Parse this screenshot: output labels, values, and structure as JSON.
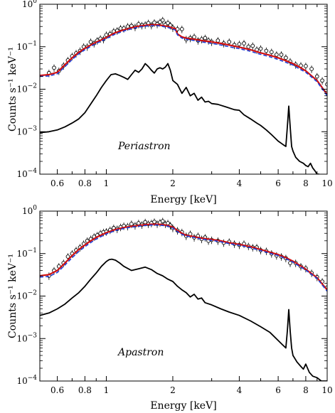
{
  "chart_data": [
    {
      "type": "line",
      "annotation": "Periastron",
      "xlabel": "Energy [keV]",
      "ylabel": "Counts s⁻¹ keV⁻¹",
      "xscale": "log",
      "yscale": "log",
      "xlim": [
        0.5,
        10
      ],
      "ylim": [
        0.0001,
        1
      ],
      "x_ticks": [
        {
          "value": 0.6,
          "label": "0.6"
        },
        {
          "value": 0.8,
          "label": "0.8"
        },
        {
          "value": 1,
          "label": "1"
        },
        {
          "value": 2,
          "label": "2"
        },
        {
          "value": 4,
          "label": "4"
        },
        {
          "value": 6,
          "label": "6"
        },
        {
          "value": 8,
          "label": "8"
        },
        {
          "value": 10,
          "label": "10"
        }
      ],
      "y_ticks": [
        {
          "value": 1,
          "base": "10",
          "exp": "0"
        },
        {
          "value": 0.1,
          "base": "10",
          "exp": "−1"
        },
        {
          "value": 0.01,
          "base": "10",
          "exp": "−2"
        },
        {
          "value": 0.001,
          "base": "10",
          "exp": "−3"
        },
        {
          "value": 0.0001,
          "base": "10",
          "exp": "−4"
        }
      ],
      "grid": false,
      "series": [
        {
          "kind": "data",
          "x": [
            0.55,
            0.58,
            0.61,
            0.64,
            0.67,
            0.7,
            0.73,
            0.76,
            0.79,
            0.82,
            0.85,
            0.88,
            0.91,
            0.94,
            0.97,
            1.0,
            1.04,
            1.08,
            1.12,
            1.16,
            1.2,
            1.25,
            1.3,
            1.35,
            1.4,
            1.45,
            1.5,
            1.55,
            1.6,
            1.65,
            1.7,
            1.75,
            1.8,
            1.85,
            1.9,
            1.95,
            2.0,
            2.1,
            2.2,
            2.3,
            2.4,
            2.5,
            2.6,
            2.7,
            2.8,
            2.9,
            3.0,
            3.2,
            3.4,
            3.6,
            3.8,
            4.0,
            4.2,
            4.4,
            4.6,
            4.8,
            5.0,
            5.3,
            5.6,
            5.9,
            6.2,
            6.5,
            6.8,
            7.2,
            7.6,
            8.0,
            8.5,
            9.0,
            9.5,
            10.0
          ],
          "y": [
            0.024,
            0.032,
            0.027,
            0.036,
            0.048,
            0.06,
            0.07,
            0.08,
            0.1,
            0.1,
            0.13,
            0.12,
            0.14,
            0.155,
            0.15,
            0.19,
            0.2,
            0.23,
            0.24,
            0.27,
            0.27,
            0.3,
            0.31,
            0.29,
            0.34,
            0.32,
            0.33,
            0.36,
            0.32,
            0.37,
            0.34,
            0.38,
            0.42,
            0.33,
            0.36,
            0.32,
            0.28,
            0.26,
            0.26,
            0.15,
            0.16,
            0.17,
            0.14,
            0.15,
            0.16,
            0.14,
            0.13,
            0.14,
            0.12,
            0.13,
            0.11,
            0.115,
            0.12,
            0.1,
            0.105,
            0.085,
            0.09,
            0.08,
            0.075,
            0.065,
            0.065,
            0.055,
            0.045,
            0.038,
            0.036,
            0.035,
            0.03,
            0.02,
            0.016,
            0.013
          ],
          "yerr_frac": 0.2
        },
        {
          "kind": "model",
          "color": "#d01010",
          "x": [
            0.5,
            0.55,
            0.6,
            0.65,
            0.7,
            0.75,
            0.8,
            0.85,
            0.9,
            0.95,
            1.0,
            1.05,
            1.1,
            1.2,
            1.3,
            1.4,
            1.5,
            1.6,
            1.7,
            1.8,
            1.9,
            2.0,
            2.05,
            2.1,
            2.2,
            2.3,
            2.5,
            2.7,
            3.0,
            3.3,
            3.6,
            4.0,
            4.5,
            5.0,
            5.5,
            6.0,
            6.5,
            7.0,
            7.5,
            8.0,
            9.0,
            10.0
          ],
          "y": [
            0.021,
            0.022,
            0.025,
            0.038,
            0.055,
            0.074,
            0.092,
            0.11,
            0.128,
            0.145,
            0.165,
            0.19,
            0.215,
            0.25,
            0.28,
            0.305,
            0.32,
            0.33,
            0.33,
            0.315,
            0.3,
            0.275,
            0.27,
            0.2,
            0.17,
            0.16,
            0.15,
            0.14,
            0.13,
            0.12,
            0.11,
            0.098,
            0.085,
            0.072,
            0.063,
            0.055,
            0.047,
            0.04,
            0.033,
            0.027,
            0.016,
            0.0075
          ]
        },
        {
          "kind": "model",
          "color": "#1f3fd6",
          "dashed": true,
          "x": [
            0.5,
            0.55,
            0.6,
            0.65,
            0.7,
            0.75,
            0.8,
            0.85,
            0.9,
            0.95,
            1.0,
            1.05,
            1.1,
            1.2,
            1.3,
            1.4,
            1.5,
            1.6,
            1.7,
            1.8,
            1.9,
            2.0,
            2.05,
            2.1,
            2.2,
            2.3,
            2.5,
            2.7,
            3.0,
            3.3,
            3.6,
            4.0,
            4.5,
            5.0,
            5.5,
            6.0,
            6.5,
            7.0,
            7.5,
            8.0,
            9.0,
            10.0
          ],
          "y": [
            0.02,
            0.0205,
            0.023,
            0.034,
            0.05,
            0.068,
            0.085,
            0.102,
            0.12,
            0.136,
            0.155,
            0.178,
            0.2,
            0.235,
            0.265,
            0.29,
            0.305,
            0.315,
            0.315,
            0.3,
            0.285,
            0.26,
            0.25,
            0.19,
            0.16,
            0.15,
            0.14,
            0.13,
            0.12,
            0.11,
            0.1,
            0.09,
            0.078,
            0.066,
            0.058,
            0.05,
            0.043,
            0.037,
            0.03,
            0.025,
            0.015,
            0.007
          ]
        },
        {
          "kind": "component",
          "color": "#000000",
          "x": [
            0.5,
            0.55,
            0.6,
            0.65,
            0.7,
            0.75,
            0.8,
            0.85,
            0.9,
            0.95,
            1.0,
            1.05,
            1.1,
            1.15,
            1.2,
            1.25,
            1.3,
            1.35,
            1.4,
            1.45,
            1.5,
            1.55,
            1.6,
            1.65,
            1.7,
            1.75,
            1.8,
            1.85,
            1.9,
            1.95,
            2.0,
            2.1,
            2.2,
            2.3,
            2.4,
            2.5,
            2.6,
            2.7,
            2.8,
            2.9,
            3.0,
            3.2,
            3.5,
            3.8,
            4.0,
            4.2,
            4.5,
            4.8,
            5.0,
            5.3,
            5.6,
            6.0,
            6.3,
            6.5,
            6.6,
            6.7,
            6.8,
            6.9,
            7.0,
            7.2,
            7.5,
            7.8,
            8.0,
            8.2,
            8.4,
            8.6,
            8.8,
            9.0,
            9.2
          ],
          "y": [
            0.00095,
            0.001,
            0.0011,
            0.0013,
            0.0016,
            0.002,
            0.0028,
            0.0045,
            0.007,
            0.011,
            0.016,
            0.022,
            0.023,
            0.021,
            0.019,
            0.017,
            0.022,
            0.028,
            0.025,
            0.03,
            0.04,
            0.034,
            0.028,
            0.024,
            0.03,
            0.032,
            0.03,
            0.033,
            0.04,
            0.028,
            0.016,
            0.013,
            0.008,
            0.011,
            0.007,
            0.008,
            0.0055,
            0.0065,
            0.005,
            0.0052,
            0.0046,
            0.0044,
            0.0038,
            0.0033,
            0.0032,
            0.0025,
            0.002,
            0.0016,
            0.0014,
            0.0011,
            0.00085,
            0.0006,
            0.0005,
            0.00045,
            0.0013,
            0.004,
            0.0013,
            0.00045,
            0.00035,
            0.00025,
            0.0002,
            0.00018,
            0.00016,
            0.00015,
            0.00018,
            0.00014,
            0.00012,
            0.0001,
            0.0001
          ]
        }
      ]
    },
    {
      "type": "line",
      "annotation": "Apastron",
      "xlabel": "Energy [keV]",
      "ylabel": "Counts s⁻¹ keV⁻¹",
      "xscale": "log",
      "yscale": "log",
      "xlim": [
        0.5,
        10
      ],
      "ylim": [
        0.0001,
        1
      ],
      "x_ticks": [
        {
          "value": 0.6,
          "label": "0.6"
        },
        {
          "value": 0.8,
          "label": "0.8"
        },
        {
          "value": 1,
          "label": "1"
        },
        {
          "value": 2,
          "label": "2"
        },
        {
          "value": 4,
          "label": "4"
        },
        {
          "value": 6,
          "label": "6"
        },
        {
          "value": 8,
          "label": "8"
        },
        {
          "value": 10,
          "label": "10"
        }
      ],
      "y_ticks": [
        {
          "value": 1,
          "base": "10",
          "exp": "0"
        },
        {
          "value": 0.1,
          "base": "10",
          "exp": "−1"
        },
        {
          "value": 0.01,
          "base": "10",
          "exp": "−2"
        },
        {
          "value": 0.001,
          "base": "10",
          "exp": "−3"
        },
        {
          "value": 0.0001,
          "base": "10",
          "exp": "−4"
        }
      ],
      "grid": false,
      "series": [
        {
          "kind": "data",
          "x": [
            0.55,
            0.58,
            0.61,
            0.64,
            0.67,
            0.7,
            0.73,
            0.76,
            0.79,
            0.82,
            0.85,
            0.88,
            0.91,
            0.94,
            0.97,
            1.0,
            1.04,
            1.08,
            1.12,
            1.16,
            1.2,
            1.25,
            1.3,
            1.35,
            1.4,
            1.45,
            1.5,
            1.55,
            1.6,
            1.65,
            1.7,
            1.75,
            1.8,
            1.85,
            1.9,
            1.95,
            2.0,
            2.1,
            2.2,
            2.3,
            2.4,
            2.5,
            2.6,
            2.7,
            2.8,
            2.9,
            3.0,
            3.2,
            3.4,
            3.6,
            3.8,
            4.0,
            4.2,
            4.4,
            4.6,
            4.8,
            5.0,
            5.3,
            5.6,
            5.9,
            6.2,
            6.5,
            6.8,
            7.2,
            7.6,
            8.0,
            8.5,
            9.0,
            9.5,
            10.0
          ],
          "y": [
            0.03,
            0.04,
            0.05,
            0.06,
            0.085,
            0.1,
            0.12,
            0.14,
            0.17,
            0.2,
            0.22,
            0.25,
            0.27,
            0.3,
            0.32,
            0.33,
            0.36,
            0.4,
            0.38,
            0.42,
            0.45,
            0.44,
            0.5,
            0.46,
            0.52,
            0.48,
            0.55,
            0.5,
            0.52,
            0.56,
            0.5,
            0.54,
            0.58,
            0.5,
            0.52,
            0.46,
            0.4,
            0.35,
            0.32,
            0.26,
            0.29,
            0.24,
            0.26,
            0.22,
            0.24,
            0.2,
            0.21,
            0.2,
            0.18,
            0.19,
            0.17,
            0.16,
            0.17,
            0.15,
            0.14,
            0.14,
            0.12,
            0.115,
            0.1,
            0.09,
            0.085,
            0.078,
            0.06,
            0.06,
            0.05,
            0.045,
            0.035,
            0.028,
            0.022,
            0.016
          ],
          "yerr_frac": 0.2
        },
        {
          "kind": "model",
          "color": "#d01010",
          "x": [
            0.5,
            0.55,
            0.6,
            0.65,
            0.7,
            0.75,
            0.8,
            0.85,
            0.9,
            0.95,
            1.0,
            1.05,
            1.1,
            1.2,
            1.3,
            1.4,
            1.5,
            1.6,
            1.7,
            1.8,
            1.9,
            2.0,
            2.1,
            2.2,
            2.3,
            2.5,
            2.7,
            3.0,
            3.3,
            3.6,
            4.0,
            4.5,
            5.0,
            5.5,
            6.0,
            6.5,
            7.0,
            7.5,
            8.0,
            9.0,
            10.0
          ],
          "y": [
            0.03,
            0.032,
            0.04,
            0.06,
            0.09,
            0.125,
            0.16,
            0.2,
            0.24,
            0.275,
            0.31,
            0.34,
            0.37,
            0.41,
            0.44,
            0.46,
            0.48,
            0.49,
            0.49,
            0.48,
            0.46,
            0.42,
            0.35,
            0.3,
            0.27,
            0.25,
            0.23,
            0.215,
            0.2,
            0.18,
            0.165,
            0.145,
            0.125,
            0.108,
            0.095,
            0.08,
            0.066,
            0.053,
            0.043,
            0.027,
            0.014
          ]
        },
        {
          "kind": "model",
          "color": "#1f3fd6",
          "dashed": true,
          "x": [
            0.5,
            0.55,
            0.6,
            0.65,
            0.7,
            0.75,
            0.8,
            0.85,
            0.9,
            0.95,
            1.0,
            1.05,
            1.1,
            1.2,
            1.3,
            1.4,
            1.5,
            1.6,
            1.7,
            1.8,
            1.9,
            2.0,
            2.1,
            2.2,
            2.3,
            2.5,
            2.7,
            3.0,
            3.3,
            3.6,
            4.0,
            4.5,
            5.0,
            5.5,
            6.0,
            6.5,
            7.0,
            7.5,
            8.0,
            9.0,
            10.0
          ],
          "y": [
            0.028,
            0.029,
            0.036,
            0.054,
            0.08,
            0.112,
            0.145,
            0.182,
            0.22,
            0.255,
            0.29,
            0.32,
            0.35,
            0.39,
            0.42,
            0.44,
            0.46,
            0.47,
            0.47,
            0.46,
            0.44,
            0.4,
            0.33,
            0.285,
            0.26,
            0.24,
            0.22,
            0.205,
            0.19,
            0.172,
            0.157,
            0.138,
            0.118,
            0.102,
            0.09,
            0.076,
            0.063,
            0.05,
            0.041,
            0.026,
            0.013
          ]
        },
        {
          "kind": "component",
          "color": "#000000",
          "x": [
            0.5,
            0.55,
            0.6,
            0.65,
            0.7,
            0.75,
            0.8,
            0.85,
            0.9,
            0.95,
            1.0,
            1.03,
            1.06,
            1.1,
            1.15,
            1.2,
            1.3,
            1.4,
            1.5,
            1.6,
            1.7,
            1.8,
            1.9,
            2.0,
            2.1,
            2.2,
            2.3,
            2.4,
            2.5,
            2.6,
            2.7,
            2.8,
            3.0,
            3.3,
            3.6,
            4.0,
            4.5,
            5.0,
            5.5,
            6.0,
            6.3,
            6.5,
            6.6,
            6.7,
            6.8,
            6.9,
            7.0,
            7.3,
            7.6,
            7.8,
            8.0,
            8.3,
            8.6,
            9.0,
            9.4,
            10.0
          ],
          "y": [
            0.0035,
            0.004,
            0.005,
            0.0065,
            0.009,
            0.012,
            0.017,
            0.025,
            0.035,
            0.05,
            0.065,
            0.072,
            0.074,
            0.07,
            0.06,
            0.05,
            0.04,
            0.044,
            0.048,
            0.042,
            0.034,
            0.03,
            0.025,
            0.022,
            0.017,
            0.014,
            0.012,
            0.0095,
            0.011,
            0.0085,
            0.009,
            0.007,
            0.0062,
            0.005,
            0.0042,
            0.0035,
            0.0026,
            0.0019,
            0.0014,
            0.0009,
            0.0007,
            0.0006,
            0.0015,
            0.0048,
            0.0015,
            0.0006,
            0.0004,
            0.00028,
            0.00022,
            0.00019,
            0.00025,
            0.00016,
            0.00013,
            0.00012,
            0.0001,
            0.0001
          ]
        }
      ]
    }
  ]
}
